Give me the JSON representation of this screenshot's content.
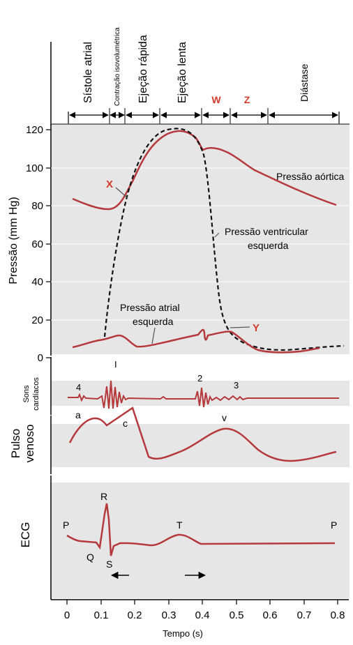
{
  "phases": [
    {
      "label": "Sístole atrial"
    },
    {
      "label": "Contração isovolumétrica"
    },
    {
      "label": "Ejeção rápida"
    },
    {
      "label": "Ejeção lenta"
    },
    {
      "label": "W"
    },
    {
      "label": "Z"
    },
    {
      "label": "Diástase"
    }
  ],
  "pressure": {
    "ylabel": "Pressão (mm Hg)",
    "ticks": [
      "0",
      "20",
      "40",
      "60",
      "80",
      "100",
      "120"
    ],
    "labels": {
      "aortic": "Pressão aórtica",
      "ventricular_1": "Pressão ventricular",
      "ventricular_2": "esquerda",
      "atrial_1": "Pressão atrial",
      "atrial_2": "esquerda"
    },
    "markers": {
      "x": "X",
      "y": "Y"
    }
  },
  "sounds": {
    "label_1": "Sons",
    "label_2": "cardíacos",
    "marks": [
      "4",
      "I",
      "2",
      "3"
    ]
  },
  "venous": {
    "label_1": "Pulso",
    "label_2": "venoso",
    "marks": [
      "a",
      "c",
      "v"
    ]
  },
  "ecg": {
    "label": "ECG",
    "marks": [
      "P",
      "R",
      "Q",
      "S",
      "T",
      "P"
    ]
  },
  "xaxis": {
    "label": "Tempo (s)",
    "ticks": [
      "0",
      "0.1",
      "0.2",
      "0.3",
      "0.4",
      "0.5",
      "0.6",
      "0.7",
      "0.8"
    ]
  },
  "colors": {
    "curve": "#b5393b",
    "accent_red": "#d33a2c",
    "panel": "#e6e6e6"
  }
}
